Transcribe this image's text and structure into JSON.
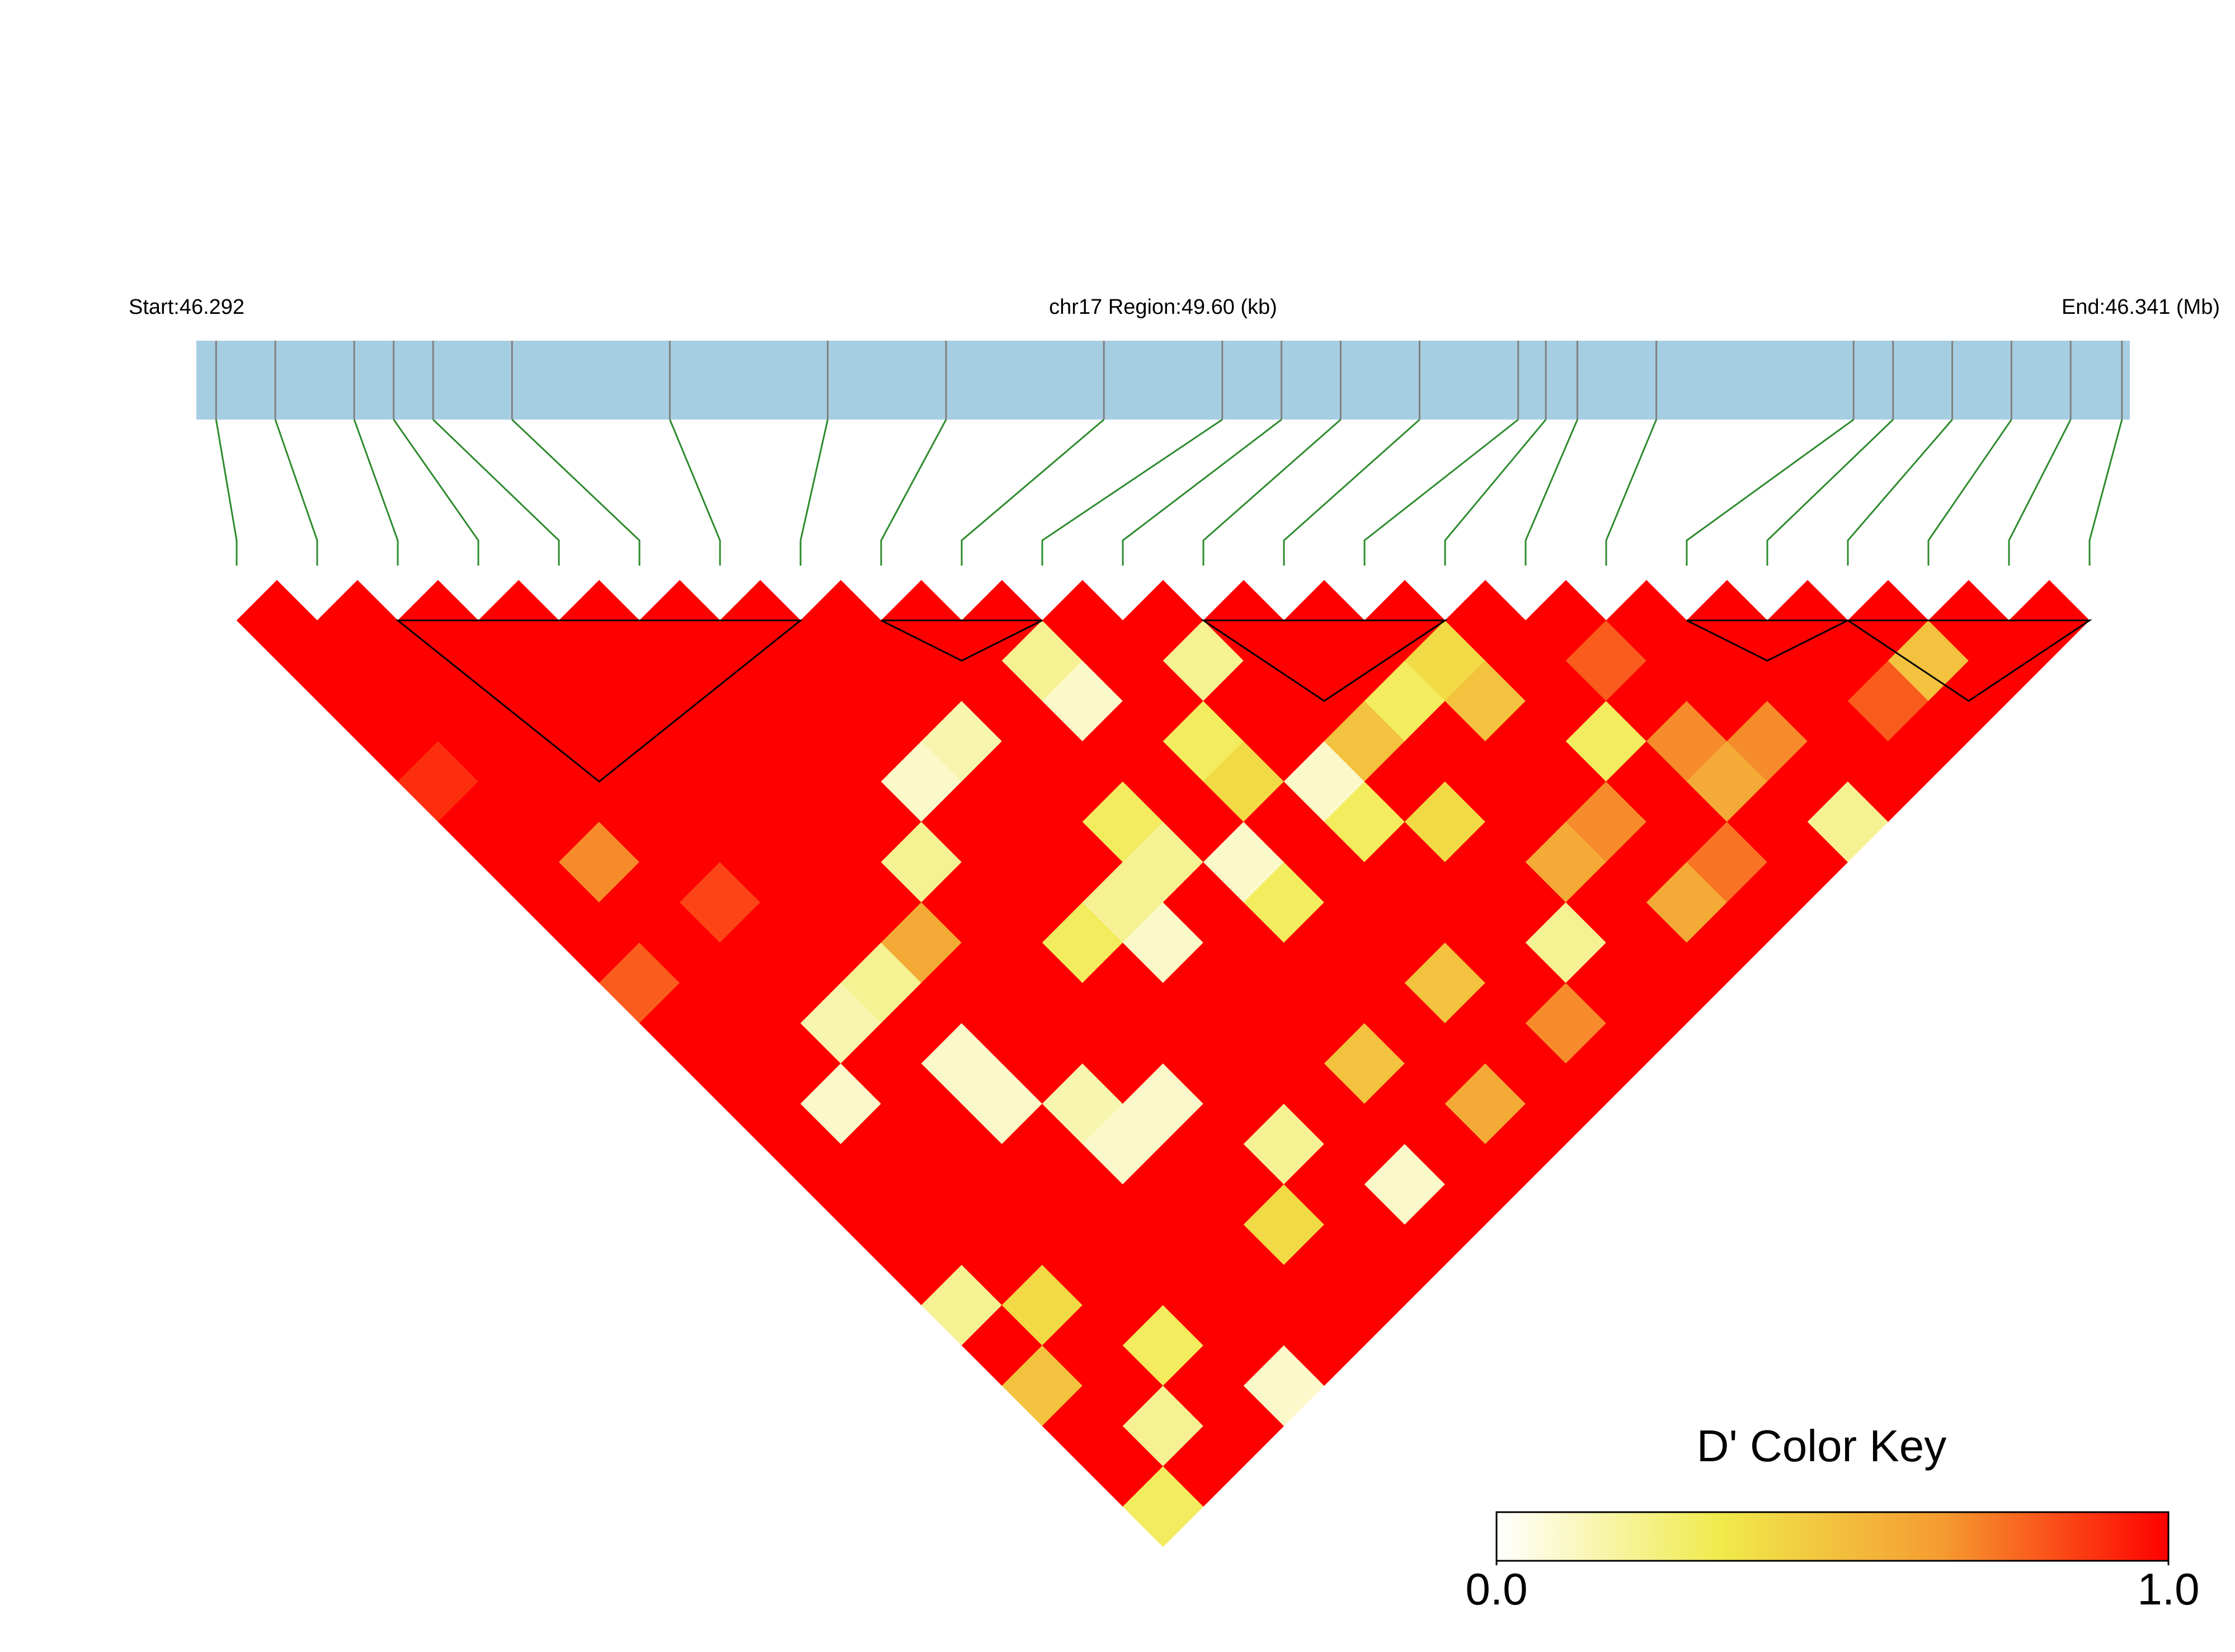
{
  "chart_data": {
    "type": "ld-heatmap",
    "title": "chr17 Region:49.60 (kb)",
    "start_label": "Start:46.292",
    "end_label": "End:46.341 (Mb)",
    "region_range": [
      46.292,
      46.341
    ],
    "positions": [
      46.2925,
      46.294,
      46.296,
      46.297,
      46.298,
      46.3,
      46.304,
      46.308,
      46.311,
      46.315,
      46.318,
      46.3195,
      46.321,
      46.323,
      46.3255,
      46.3262,
      46.327,
      46.329,
      46.334,
      46.335,
      46.3365,
      46.338,
      46.3395,
      46.3408
    ],
    "dprime": [
      [
        1,
        1,
        1,
        1,
        0.9,
        1,
        1,
        1,
        1,
        0.8,
        1,
        1,
        1,
        1,
        1,
        1,
        1,
        0.2,
        1,
        0.5,
        1,
        1,
        0.3
      ],
      [
        1,
        1,
        1,
        1,
        1,
        1,
        0.7,
        1,
        1,
        1,
        1,
        1,
        0.1,
        1,
        1,
        1,
        1,
        0.4,
        1,
        1,
        0.2,
        1
      ],
      [
        1,
        1,
        1,
        1,
        1,
        1,
        1,
        0.85,
        1,
        1,
        0.15,
        1,
        1,
        1,
        1,
        1,
        1,
        1,
        0.3,
        1,
        1
      ],
      [
        1,
        1,
        1,
        1,
        1,
        1,
        1,
        1,
        1,
        0.2,
        1,
        0.1,
        0.1,
        1,
        1,
        1,
        1,
        1,
        1,
        0.1
      ],
      [
        1,
        1,
        1,
        1,
        1,
        1,
        1,
        1,
        0.6,
        1,
        1,
        1,
        0.15,
        0.1,
        1,
        1,
        1,
        1,
        1
      ],
      [
        1,
        1,
        1,
        1,
        1,
        1,
        0.2,
        1,
        1,
        1,
        1,
        1,
        0.1,
        1,
        1,
        0.4,
        1,
        1
      ],
      [
        1,
        1,
        1,
        1,
        0.1,
        1,
        1,
        1,
        0.3,
        1,
        1,
        1,
        1,
        0.2,
        1,
        1,
        1
      ],
      [
        1,
        1,
        1,
        0.15,
        1,
        1,
        1,
        0.2,
        0.1,
        1,
        1,
        1,
        1,
        1,
        0.1,
        1
      ],
      [
        1,
        1,
        1,
        1,
        1,
        0.3,
        0.2,
        1,
        1,
        1,
        1,
        0.5,
        1,
        1,
        1
      ],
      [
        1,
        0.2,
        0.1,
        1,
        1,
        1,
        0.1,
        0.3,
        1,
        1,
        1,
        1,
        0.6,
        1
      ],
      [
        1,
        1,
        1,
        0.3,
        0.4,
        1,
        1,
        1,
        1,
        0.5,
        1,
        1,
        1
      ],
      [
        1,
        0.2,
        1,
        1,
        0.1,
        0.3,
        1,
        1,
        1,
        1,
        0.7,
        1
      ],
      [
        1,
        1,
        1,
        0.5,
        1,
        0.4,
        1,
        1,
        0.2,
        1,
        1
      ],
      [
        1,
        1,
        0.3,
        1,
        1,
        1,
        0.6,
        1,
        1,
        1
      ],
      [
        1,
        0.4,
        0.5,
        1,
        1,
        0.7,
        1,
        0.6,
        1
      ],
      [
        1,
        1,
        1,
        0.3,
        1,
        1,
        0.75,
        1
      ],
      [
        1,
        0.8,
        1,
        0.7,
        0.6,
        1,
        1
      ],
      [
        1,
        1,
        1,
        0.7,
        1,
        0.2
      ],
      [
        1,
        1,
        1,
        1,
        1
      ],
      [
        1,
        1,
        0.8,
        1
      ],
      [
        1,
        0.5,
        1
      ],
      [
        1,
        1
      ],
      [
        1
      ]
    ],
    "blocks": [
      [
        2,
        7
      ],
      [
        8,
        10
      ],
      [
        12,
        15
      ],
      [
        18,
        20
      ],
      [
        20,
        23
      ]
    ],
    "key_title": "D' Color Key",
    "key_range": [
      0,
      1
    ],
    "key_ticks": [
      {
        "value": 0,
        "label": "0.0"
      },
      {
        "value": 1,
        "label": "1.0"
      }
    ],
    "key_colors": [
      "#ffffff",
      "#f0ea4c",
      "#f59a30",
      "#ff0000"
    ],
    "bar_color": "#a6cee3",
    "tick_color": "#808080",
    "link_color": "#2e8b2e"
  }
}
